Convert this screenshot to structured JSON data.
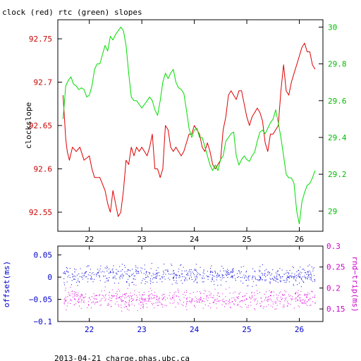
{
  "chart_data": [
    {
      "type": "line",
      "title": "clock (red) rtc (green) slopes",
      "ylabel": "clockslope",
      "xlim": [
        21.4,
        26.45
      ],
      "x_ticks": [
        22,
        23,
        24,
        25,
        26
      ],
      "y_left": {
        "lim": [
          92.528,
          92.772
        ],
        "ticks": [
          92.55,
          92.6,
          92.65,
          92.7,
          92.75
        ],
        "tick_labels": [
          "92.55",
          "92.6",
          "92.65",
          "92.7",
          "92.75"
        ],
        "color": "#cc0000"
      },
      "y_right": {
        "lim": [
          28.89,
          30.04
        ],
        "ticks": [
          29,
          29.2,
          29.4,
          29.6,
          29.8,
          30
        ],
        "tick_labels": [
          "29",
          "29.2",
          "29.4",
          "29.6",
          "29.8",
          "30"
        ],
        "color": "#00bb00"
      },
      "series": [
        {
          "color": "#dd0000",
          "axis": "left",
          "x": [
            21.5,
            21.55,
            21.58,
            21.62,
            21.68,
            21.75,
            21.82,
            21.9,
            22.0,
            22.05,
            22.1,
            22.2,
            22.3,
            22.35,
            22.4,
            22.45,
            22.5,
            22.55,
            22.6,
            22.65,
            22.7,
            22.75,
            22.8,
            22.85,
            22.9,
            22.95,
            23.0,
            23.05,
            23.1,
            23.15,
            23.2,
            23.25,
            23.3,
            23.35,
            23.4,
            23.45,
            23.5,
            23.55,
            23.6,
            23.65,
            23.7,
            23.75,
            23.8,
            23.85,
            23.9,
            23.95,
            24.0,
            24.05,
            24.1,
            24.15,
            24.2,
            24.25,
            24.3,
            24.35,
            24.4,
            24.45,
            24.5,
            24.55,
            24.6,
            24.65,
            24.7,
            24.75,
            24.8,
            24.85,
            24.9,
            24.95,
            25.0,
            25.05,
            25.1,
            25.15,
            25.2,
            25.25,
            25.3,
            25.35,
            25.4,
            25.45,
            25.5,
            25.55,
            25.6,
            25.65,
            25.7,
            25.75,
            25.8,
            25.85,
            25.9,
            25.95,
            26.0,
            26.05,
            26.1,
            26.15,
            26.2,
            26.25,
            26.3
          ],
          "y": [
            92.685,
            92.635,
            92.62,
            92.61,
            92.625,
            92.62,
            92.625,
            92.61,
            92.615,
            92.6,
            92.59,
            92.59,
            92.575,
            92.56,
            92.55,
            92.575,
            92.56,
            92.545,
            92.55,
            92.575,
            92.61,
            92.605,
            92.625,
            92.615,
            92.625,
            92.62,
            92.625,
            92.62,
            92.615,
            92.625,
            92.64,
            92.6,
            92.6,
            92.59,
            92.6,
            92.65,
            92.645,
            92.625,
            92.62,
            92.625,
            92.62,
            92.615,
            92.62,
            92.63,
            92.64,
            92.64,
            92.65,
            92.645,
            92.64,
            92.625,
            92.62,
            92.63,
            92.62,
            92.605,
            92.6,
            92.605,
            92.61,
            92.645,
            92.66,
            92.685,
            92.69,
            92.685,
            92.68,
            92.69,
            92.69,
            92.675,
            92.66,
            92.65,
            92.66,
            92.665,
            92.67,
            92.665,
            92.655,
            92.63,
            92.62,
            92.64,
            92.64,
            92.645,
            92.65,
            92.69,
            92.72,
            92.69,
            92.685,
            92.7,
            92.71,
            92.72,
            92.73,
            92.74,
            92.745,
            92.735,
            92.735,
            92.72,
            92.715
          ]
        },
        {
          "color": "#00dd00",
          "axis": "right",
          "x": [
            21.5,
            21.55,
            21.6,
            21.65,
            21.7,
            21.75,
            21.8,
            21.85,
            21.9,
            21.95,
            22.0,
            22.05,
            22.1,
            22.15,
            22.2,
            22.25,
            22.3,
            22.35,
            22.4,
            22.45,
            22.5,
            22.55,
            22.6,
            22.65,
            22.7,
            22.75,
            22.8,
            22.85,
            22.9,
            22.95,
            23.0,
            23.05,
            23.1,
            23.15,
            23.2,
            23.25,
            23.3,
            23.35,
            23.4,
            23.45,
            23.5,
            23.55,
            23.6,
            23.65,
            23.7,
            23.75,
            23.8,
            23.85,
            23.9,
            23.95,
            24.0,
            24.05,
            24.1,
            24.15,
            24.2,
            24.25,
            24.3,
            24.35,
            24.4,
            24.45,
            24.5,
            24.55,
            24.6,
            24.65,
            24.7,
            24.75,
            24.8,
            24.85,
            24.9,
            24.95,
            25.0,
            25.05,
            25.1,
            25.15,
            25.2,
            25.25,
            25.3,
            25.35,
            25.4,
            25.45,
            25.5,
            25.55,
            25.6,
            25.65,
            25.7,
            25.75,
            25.8,
            25.85,
            25.9,
            25.95,
            26.0,
            26.05,
            26.1,
            26.15,
            26.2,
            26.25,
            26.3
          ],
          "y": [
            29.5,
            29.68,
            29.71,
            29.73,
            29.69,
            29.68,
            29.66,
            29.67,
            29.66,
            29.62,
            29.63,
            29.68,
            29.77,
            29.8,
            29.8,
            29.85,
            29.9,
            29.87,
            29.95,
            29.93,
            29.96,
            29.98,
            30.0,
            29.98,
            29.9,
            29.75,
            29.62,
            29.6,
            29.6,
            29.58,
            29.56,
            29.58,
            29.6,
            29.62,
            29.6,
            29.55,
            29.52,
            29.6,
            29.7,
            29.75,
            29.72,
            29.75,
            29.77,
            29.7,
            29.67,
            29.66,
            29.64,
            29.55,
            29.45,
            29.4,
            29.44,
            29.45,
            29.4,
            29.4,
            29.35,
            29.3,
            29.25,
            29.22,
            29.25,
            29.22,
            29.28,
            29.3,
            29.38,
            29.4,
            29.42,
            29.43,
            29.3,
            29.25,
            29.28,
            29.3,
            29.28,
            29.27,
            29.3,
            29.32,
            29.38,
            29.43,
            29.44,
            29.42,
            29.45,
            29.48,
            29.5,
            29.55,
            29.48,
            29.4,
            29.3,
            29.2,
            29.18,
            29.18,
            29.15,
            29.0,
            28.93,
            29.05,
            29.1,
            29.14,
            29.15,
            29.18,
            29.22
          ]
        }
      ]
    },
    {
      "type": "scatter",
      "ylabel": "offset(ms)",
      "ylabel_right": "rnd−trip(ms)",
      "xlim": [
        21.4,
        26.45
      ],
      "x_ticks": [
        22,
        23,
        24,
        25,
        26
      ],
      "y_left": {
        "lim": [
          -0.1,
          0.07
        ],
        "ticks": [
          -0.1,
          -0.05,
          0,
          0.05
        ],
        "tick_labels": [
          "−0.1",
          "−0.05",
          "0",
          "0.05"
        ],
        "color": "#0000cc"
      },
      "y_right": {
        "lim": [
          0.12,
          0.3
        ],
        "ticks": [
          0.15,
          0.2,
          0.25,
          0.3
        ],
        "tick_labels": [
          "0.15",
          "0.2",
          "0.25",
          "0.3"
        ],
        "color": "#cc00cc"
      },
      "series": [
        {
          "color": "#0000dd",
          "axis": "left",
          "x_range": [
            21.5,
            26.3
          ],
          "center": 0.005,
          "spread": 0.02
        },
        {
          "color": "#dd00dd",
          "axis": "right",
          "x_range": [
            21.5,
            26.3
          ],
          "center": 0.175,
          "spread": 0.022
        }
      ]
    }
  ],
  "footer": "2013-04-21 charge.phas.ubc.ca"
}
